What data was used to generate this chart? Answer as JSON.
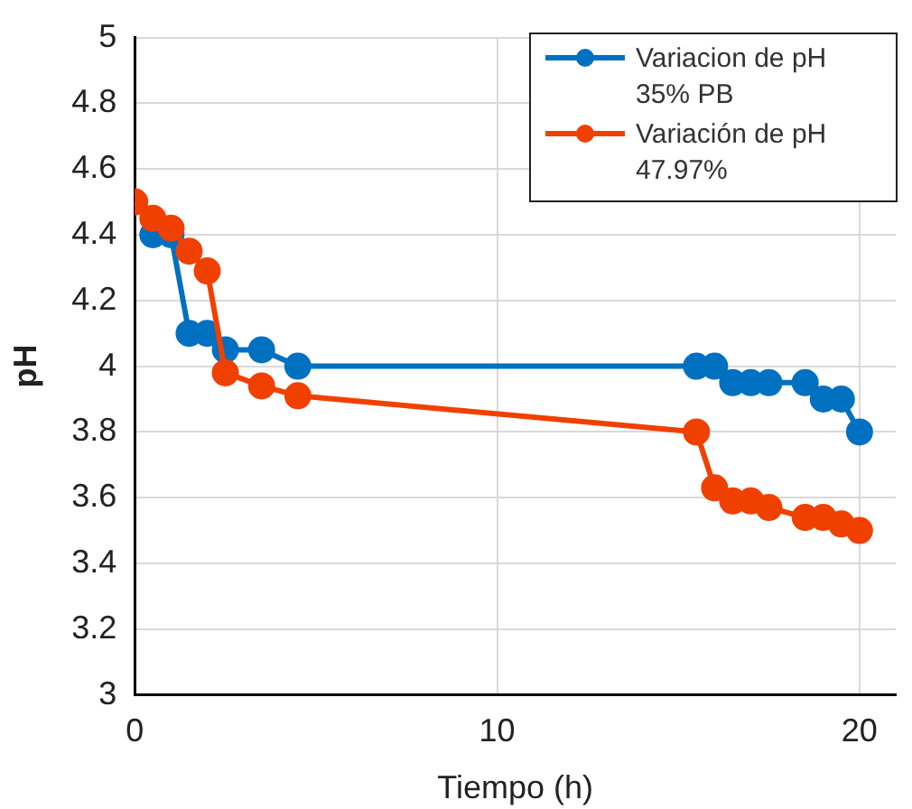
{
  "chart_data": {
    "type": "line",
    "xlabel": "Tiempo (h)",
    "ylabel": "pH",
    "xlim": [
      0,
      21
    ],
    "xticks": [
      0,
      10,
      20
    ],
    "ylim": [
      3,
      5
    ],
    "yticks": [
      3,
      3.2,
      3.4,
      3.6,
      3.8,
      4,
      4.2,
      4.4,
      4.6,
      4.8,
      5
    ],
    "grid": true,
    "legend": "top right",
    "marker": "circle",
    "line_style": "solid",
    "series": [
      {
        "name": "Variacion de pH 35% PB",
        "color": "#0070c0",
        "x": [
          0.5,
          1,
          1.5,
          2,
          2.5,
          3.5,
          4.5,
          15.5,
          16,
          16.5,
          17,
          17.5,
          18.5,
          19,
          19.5,
          20
        ],
        "values": [
          4.4,
          4.4,
          4.1,
          4.1,
          4.05,
          4.05,
          4,
          4,
          4,
          3.95,
          3.95,
          3.95,
          3.95,
          3.9,
          3.9,
          3.8
        ]
      },
      {
        "name": "Variación de pH 47.97%",
        "color": "#f04000",
        "x": [
          0,
          0.5,
          1,
          1.5,
          2,
          2.5,
          3.5,
          4.5,
          15.5,
          16,
          16.5,
          17,
          17.5,
          18.5,
          19,
          19.5,
          20
        ],
        "values": [
          4.5,
          4.45,
          4.42,
          4.35,
          4.29,
          3.98,
          3.94,
          3.91,
          3.8,
          3.63,
          3.59,
          3.59,
          3.57,
          3.54,
          3.54,
          3.52,
          3.5
        ]
      }
    ]
  }
}
